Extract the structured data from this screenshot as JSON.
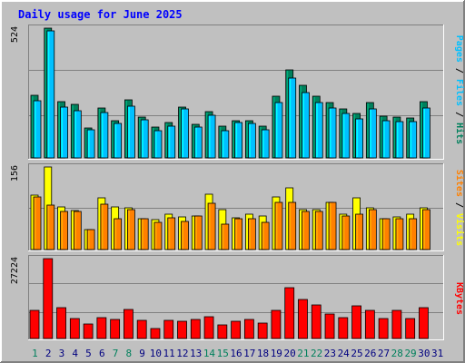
{
  "title": "Daily usage for June 2025",
  "colors": {
    "background": "#c0c0c0",
    "plot_bg": "#c0c0c0",
    "grid": "#808080",
    "title": "#0000ff",
    "hits": "#00805c",
    "files": "#00c0ff",
    "pages": "#00c0ff",
    "sites": "#ff8000",
    "visits": "#ffff00",
    "kbytes": "#ff0000",
    "weekend_day": "#00805c",
    "weekday": "#000080"
  },
  "chart_data": [
    {
      "type": "bar",
      "panel": "hits-files-pages",
      "axis_max_label": "524",
      "ylim": [
        0,
        524
      ],
      "categories": [
        "1",
        "2",
        "3",
        "4",
        "5",
        "6",
        "7",
        "8",
        "9",
        "10",
        "11",
        "12",
        "13",
        "14",
        "15",
        "16",
        "17",
        "18",
        "19",
        "20",
        "21",
        "22",
        "23",
        "24",
        "25",
        "26",
        "27",
        "28",
        "29",
        "30",
        "31"
      ],
      "series": [
        {
          "name": "Hits",
          "values": [
            254,
            524,
            227,
            217,
            121,
            202,
            152,
            233,
            166,
            125,
            144,
            207,
            135,
            186,
            127,
            152,
            150,
            130,
            248,
            355,
            294,
            250,
            224,
            199,
            181,
            222,
            169,
            164,
            160,
            226,
            0
          ]
        },
        {
          "name": "Files",
          "values": [
            231,
            512,
            207,
            191,
            112,
            185,
            141,
            209,
            154,
            110,
            127,
            198,
            126,
            173,
            111,
            143,
            140,
            114,
            223,
            322,
            263,
            225,
            201,
            178,
            157,
            197,
            152,
            146,
            147,
            200,
            0
          ]
        },
        {
          "name": "Pages",
          "values": [
            180,
            420,
            170,
            160,
            100,
            150,
            120,
            170,
            125,
            95,
            108,
            160,
            105,
            140,
            95,
            120,
            118,
            100,
            170,
            260,
            200,
            180,
            160,
            140,
            130,
            160,
            120,
            115,
            118,
            160,
            0
          ]
        }
      ],
      "legend": [
        "Pages",
        "Files",
        "Hits"
      ]
    },
    {
      "type": "bar",
      "panel": "sites-visits",
      "axis_max_label": "156",
      "ylim": [
        0,
        156
      ],
      "categories": [
        "1",
        "2",
        "3",
        "4",
        "5",
        "6",
        "7",
        "8",
        "9",
        "10",
        "11",
        "12",
        "13",
        "14",
        "15",
        "16",
        "17",
        "18",
        "19",
        "20",
        "21",
        "22",
        "23",
        "24",
        "25",
        "26",
        "27",
        "28",
        "29",
        "30",
        "31"
      ],
      "series": [
        {
          "name": "Visits",
          "values": [
            102,
            156,
            81,
            74,
            38,
            98,
            80,
            78,
            59,
            57,
            67,
            61,
            64,
            104,
            76,
            60,
            67,
            64,
            100,
            117,
            76,
            75,
            90,
            67,
            97,
            78,
            59,
            62,
            66,
            79,
            0
          ]
        },
        {
          "name": "Sites",
          "values": [
            99,
            84,
            72,
            72,
            38,
            86,
            58,
            75,
            58,
            52,
            60,
            53,
            64,
            88,
            48,
            58,
            58,
            51,
            90,
            90,
            72,
            72,
            90,
            63,
            66,
            76,
            58,
            58,
            58,
            76,
            0
          ]
        }
      ],
      "legend": [
        "Sites",
        "Visits"
      ]
    },
    {
      "type": "bar",
      "panel": "kbytes",
      "axis_max_label": "27224",
      "ylim": [
        0,
        27224
      ],
      "categories": [
        "1",
        "2",
        "3",
        "4",
        "5",
        "6",
        "7",
        "8",
        "9",
        "10",
        "11",
        "12",
        "13",
        "14",
        "15",
        "16",
        "17",
        "18",
        "19",
        "20",
        "21",
        "22",
        "23",
        "24",
        "25",
        "26",
        "27",
        "28",
        "29",
        "30",
        "31"
      ],
      "series": [
        {
          "name": "KBytes",
          "values": [
            9600,
            27224,
            10500,
            6800,
            4800,
            7000,
            6500,
            9800,
            6300,
            3400,
            6300,
            6000,
            6400,
            7500,
            4500,
            5900,
            6500,
            5400,
            9600,
            17300,
            13300,
            11300,
            8300,
            7200,
            11000,
            9500,
            6900,
            9500,
            6900,
            10500,
            0
          ]
        }
      ],
      "legend": [
        "KBytes"
      ]
    }
  ],
  "x_labels": [
    "1",
    "2",
    "3",
    "4",
    "5",
    "6",
    "7",
    "8",
    "9",
    "10",
    "11",
    "12",
    "13",
    "14",
    "15",
    "16",
    "17",
    "18",
    "19",
    "20",
    "21",
    "22",
    "23",
    "24",
    "25",
    "26",
    "27",
    "28",
    "29",
    "30",
    "31"
  ],
  "weekend_days": [
    "1",
    "7",
    "8",
    "14",
    "15",
    "21",
    "22",
    "28",
    "29"
  ],
  "legend_separator": " / "
}
